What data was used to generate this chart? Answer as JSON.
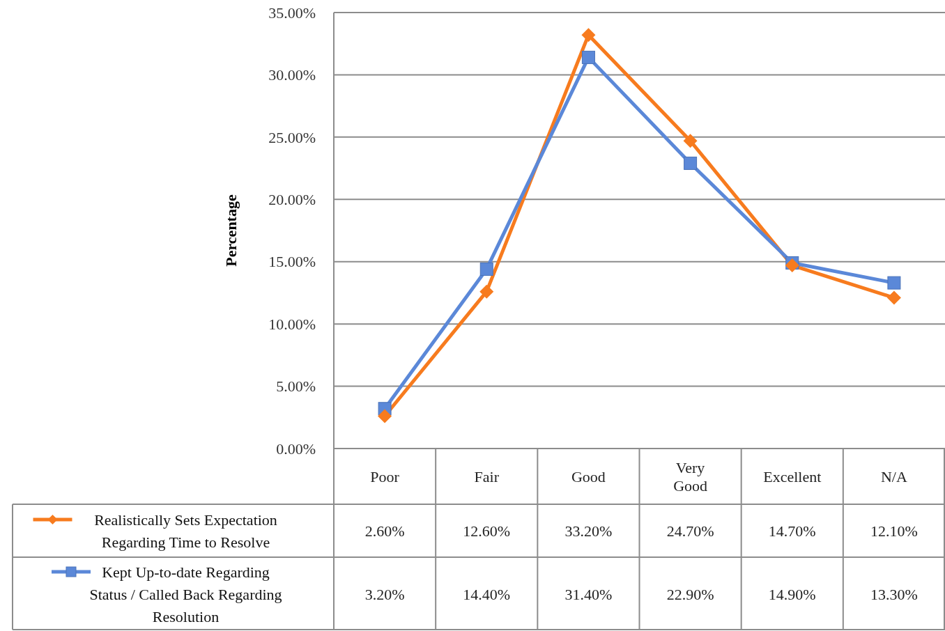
{
  "chart_data": {
    "type": "line",
    "ylabel": "Percentage",
    "categories": [
      "Poor",
      "Fair",
      "Good",
      "Very Good",
      "Excellent",
      "N/A"
    ],
    "series": [
      {
        "name": "Realistically Sets Expectation Regarding Time to Resolve",
        "color": "#f77b1e",
        "marker": "diamond",
        "values": [
          2.6,
          12.6,
          33.2,
          24.7,
          14.7,
          12.1
        ],
        "value_labels": [
          "2.60%",
          "12.60%",
          "33.20%",
          "24.70%",
          "14.70%",
          "12.10%"
        ]
      },
      {
        "name": "Kept Up-to-date Regarding Status / Called Back Regarding Resolution",
        "color": "#5b88d8",
        "marker": "square",
        "values": [
          3.2,
          14.4,
          31.4,
          22.9,
          14.9,
          13.3
        ],
        "value_labels": [
          "3.20%",
          "14.40%",
          "31.40%",
          "22.90%",
          "14.90%",
          "13.30%"
        ]
      }
    ],
    "ylim": [
      0,
      35
    ],
    "yticks": [
      {
        "value": 0,
        "label": "0.00%"
      },
      {
        "value": 5,
        "label": "5.00%"
      },
      {
        "value": 10,
        "label": "10.00%"
      },
      {
        "value": 15,
        "label": "15.00%"
      },
      {
        "value": 20,
        "label": "20.00%"
      },
      {
        "value": 25,
        "label": "25.00%"
      },
      {
        "value": 30,
        "label": "30.00%"
      },
      {
        "value": 35,
        "label": "35.00%"
      }
    ],
    "grid": "y",
    "legend": "bottom",
    "line_style": "solid"
  }
}
